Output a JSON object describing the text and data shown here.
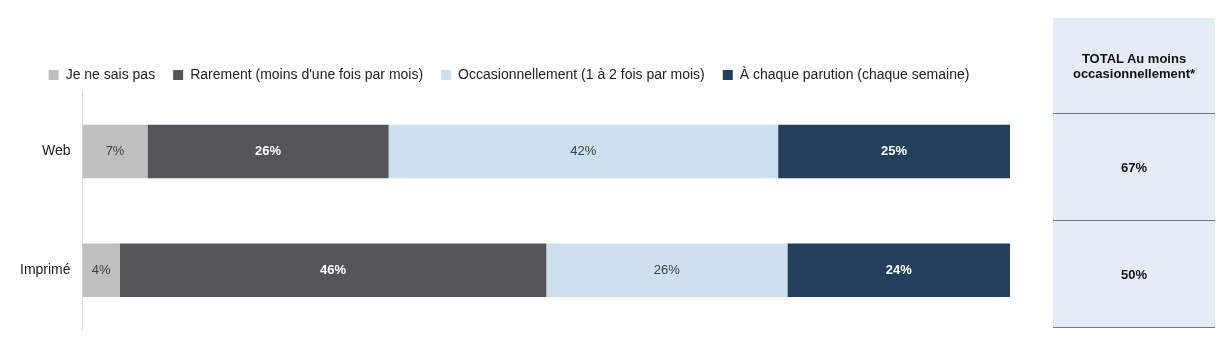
{
  "chart_data": {
    "type": "bar",
    "orientation": "horizontal",
    "stacked": true,
    "categories": [
      "Web",
      "Imprimé"
    ],
    "series": [
      {
        "name": "Je ne sais pas",
        "color": "#bfbfbf",
        "values": [
          7,
          4
        ],
        "value_labels": [
          "7%",
          "4%"
        ]
      },
      {
        "name": "Rarement (moins d'une fois par mois)",
        "color": "#545459",
        "values": [
          26,
          46
        ],
        "value_labels": [
          "26%",
          "46%"
        ]
      },
      {
        "name": "Occasionnellement (1 à 2 fois par mois)",
        "color": "#cce0f0",
        "values": [
          42,
          26
        ],
        "value_labels": [
          "42%",
          "26%"
        ]
      },
      {
        "name": "À chaque parution (chaque semaine)",
        "color": "#243f5c",
        "values": [
          25,
          24
        ],
        "value_labels": [
          "25%",
          "24%"
        ]
      }
    ],
    "xlim": [
      0,
      100
    ],
    "tick_labels": "y",
    "grid": false,
    "legend": "top",
    "annotations": [
      "TOTAL Au moins occasionnellement*",
      "67%",
      "50%"
    ]
  }
}
